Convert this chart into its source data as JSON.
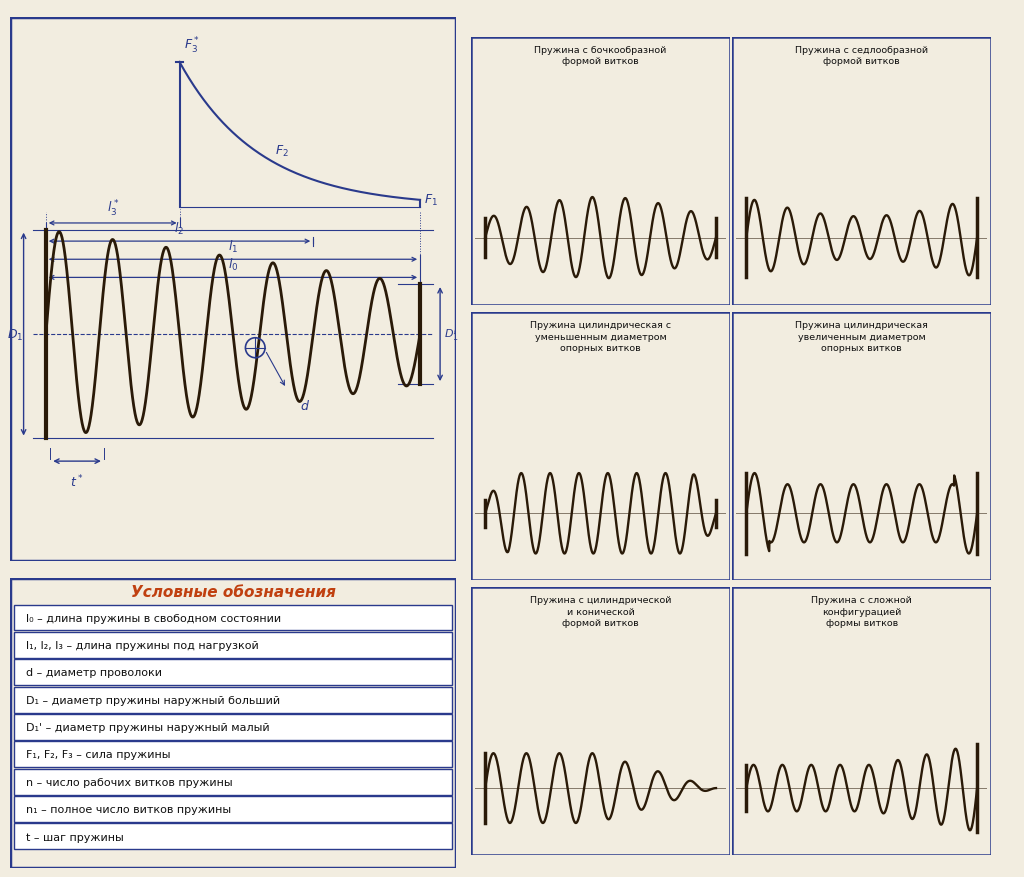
{
  "bg_color": "#f2ede0",
  "border_color": "#2a3a8c",
  "left_panel_bg": "#ede8d8",
  "cell_bg": "#ede8d8",
  "spring_color": "#2a1a08",
  "diagram_line_color": "#2a3a8c",
  "legend_title": "Условные обозначения",
  "legend_title_color": "#c04010",
  "legend_items": [
    "l₀ – длина пружины в свободном состоянии",
    "l₁, l₂, l₃ – длина пружины под нагрузкой",
    "d – диаметр проволоки",
    "D₁ – диаметр пружины наружный больший",
    "D₁' – диаметр пружины наружный малый",
    "F₁, F₂, F₃ – сила пружины",
    "n – число рабочих витков пружины",
    "n₁ – полное число витков пружины",
    "t – шаг пружины"
  ],
  "spring_titles": [
    "Пружина с бочкообразной\nформой витков",
    "Пружина с седлообразной\nформой витков",
    "Пружина цилиндрическая с\nуменьшенным диаметром\nопорных витков",
    "Пружина цилиндрическая\nувеличенным диаметром\nопорных витков",
    "Пружина с цилиндрической\nи конической\nформой витков",
    "Пружина с сложной\nконфигурацией\nформы витков"
  ]
}
